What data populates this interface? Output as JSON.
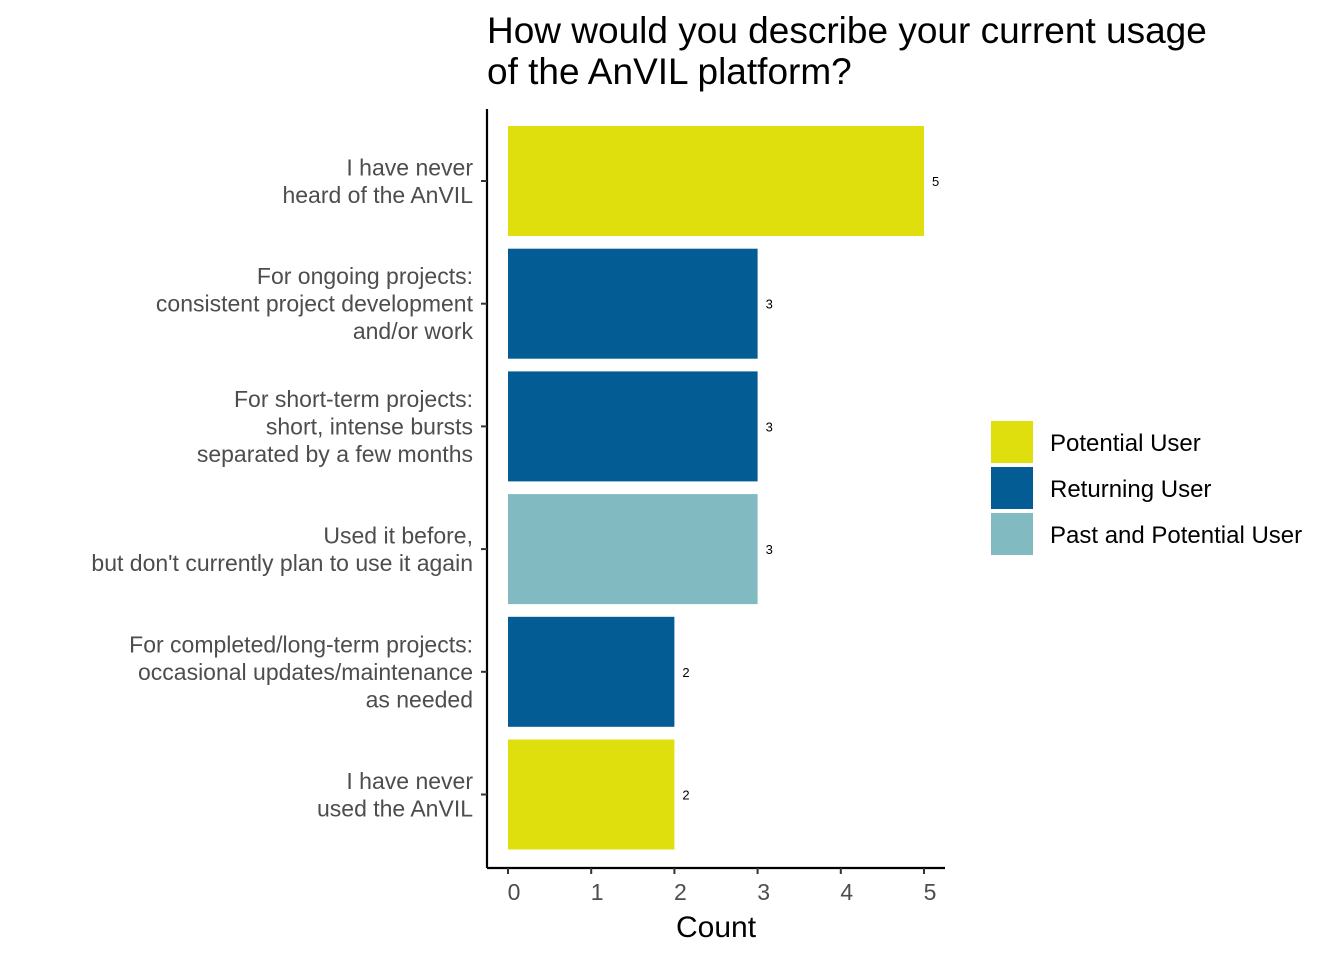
{
  "chart_data": {
    "type": "bar",
    "orientation": "horizontal",
    "title_lines": [
      "How would you describe your current usage",
      "of the AnVIL platform?"
    ],
    "xlabel": "Count",
    "ylabel": "",
    "xlim": [
      0,
      5
    ],
    "xticks": [
      0,
      1,
      2,
      3,
      4,
      5
    ],
    "grid": false,
    "legend_position": "right",
    "categories": [
      {
        "lines": [
          "I have never",
          "heard of the AnVIL"
        ],
        "value": 5,
        "group": "Potential User"
      },
      {
        "lines": [
          "For ongoing projects:",
          "consistent project development",
          "and/or work"
        ],
        "value": 3,
        "group": "Returning User"
      },
      {
        "lines": [
          "For short-term projects:",
          "short, intense bursts",
          "separated by a few months"
        ],
        "value": 3,
        "group": "Returning User"
      },
      {
        "lines": [
          "Used it before,",
          "but don't currently plan to use it again"
        ],
        "value": 3,
        "group": "Past and Potential User"
      },
      {
        "lines": [
          "For completed/long-term projects:",
          "occasional updates/maintenance",
          "as needed"
        ],
        "value": 2,
        "group": "Returning User"
      },
      {
        "lines": [
          "I have never",
          "used the AnVIL"
        ],
        "value": 2,
        "group": "Potential User"
      }
    ],
    "legend": [
      {
        "name": "Potential User",
        "color": "#dfdf0d"
      },
      {
        "name": "Returning User",
        "color": "#035c94"
      },
      {
        "name": "Past and Potential User",
        "color": "#81bbc1"
      }
    ]
  }
}
